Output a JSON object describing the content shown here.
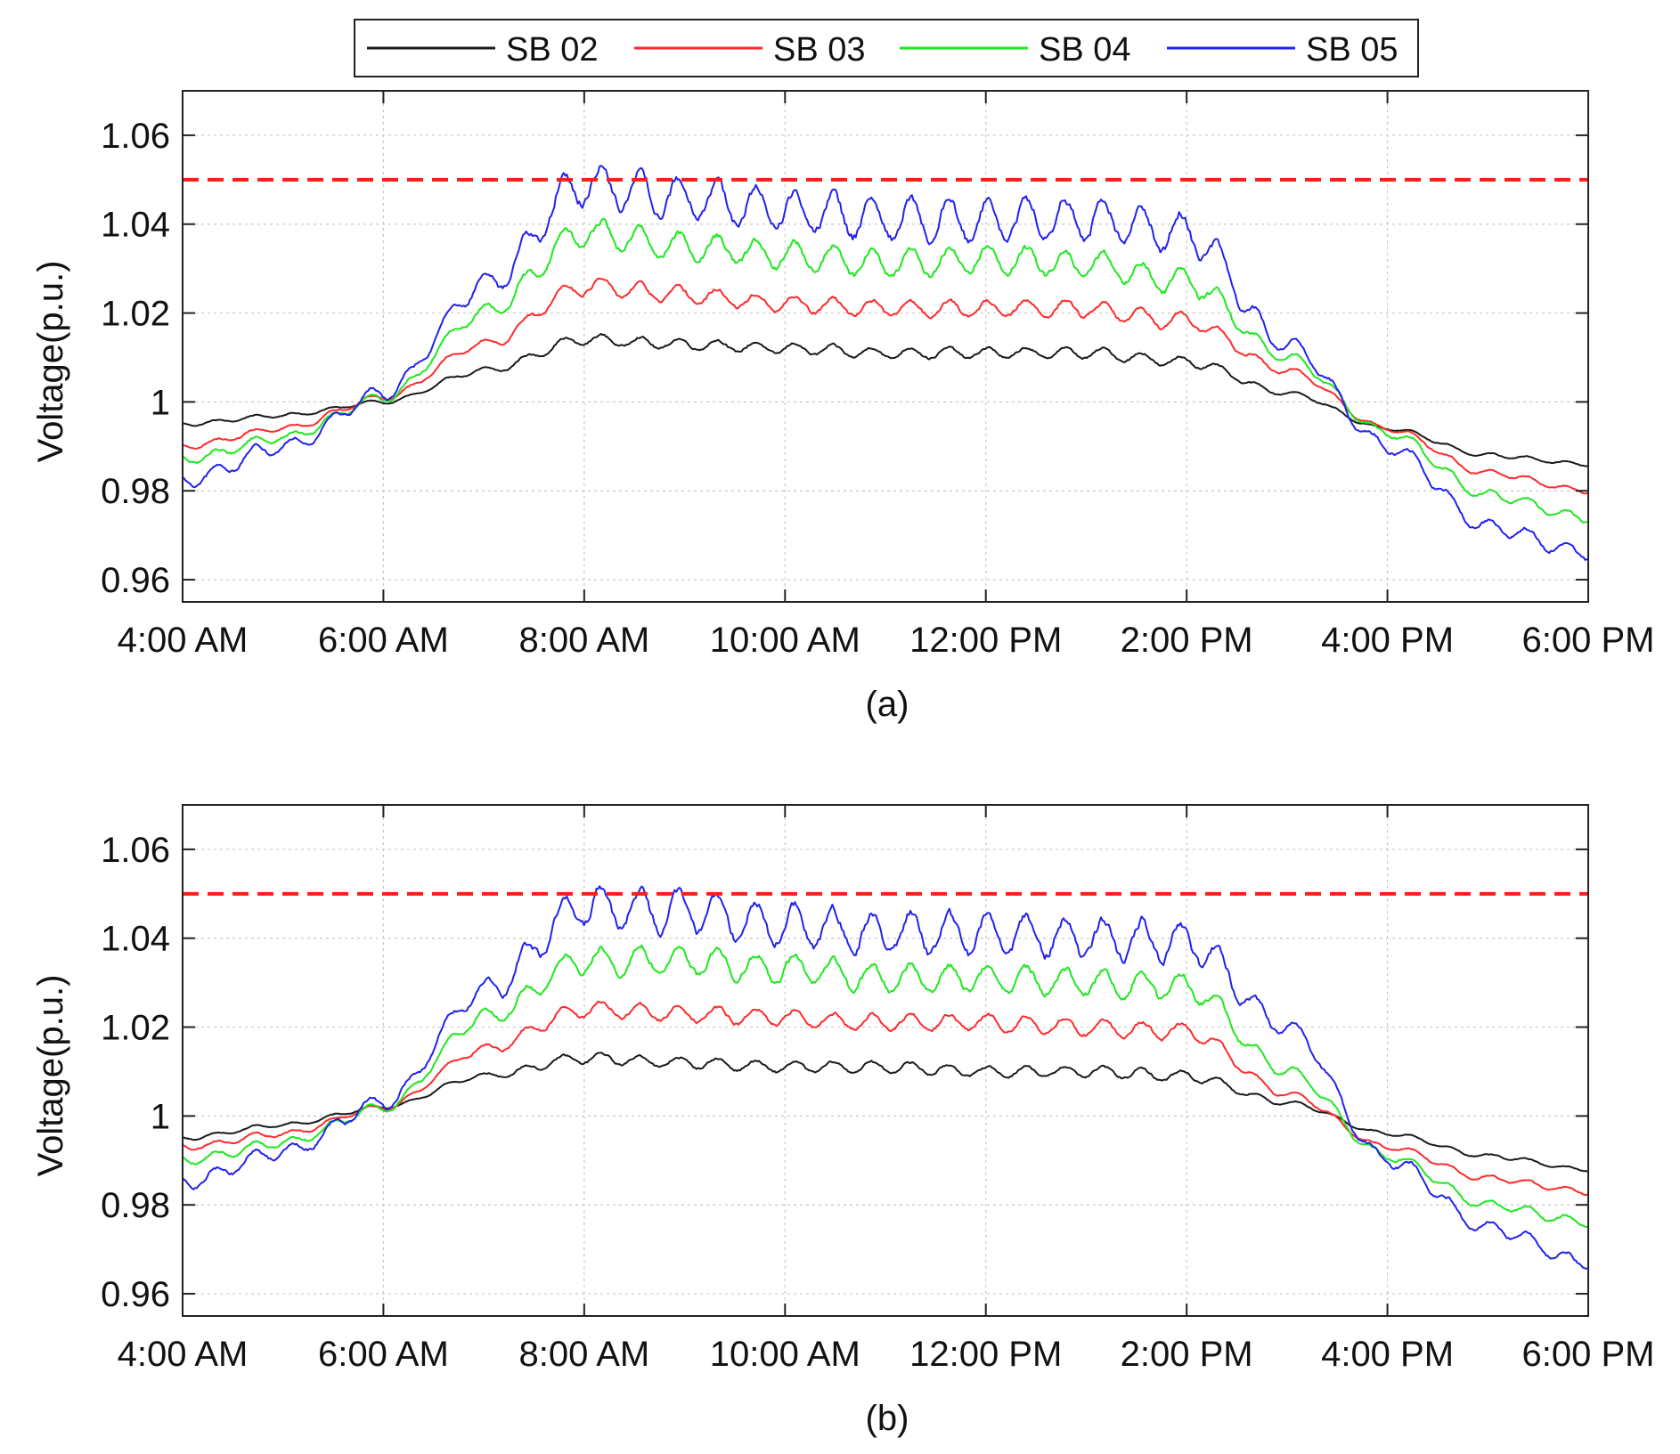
{
  "legend": [
    {
      "name": "SB 02",
      "color": "#1a1a1a"
    },
    {
      "name": "SB 03",
      "color": "#ff2a2a"
    },
    {
      "name": "SB 04",
      "color": "#1ee81e"
    },
    {
      "name": "SB 05",
      "color": "#2222ee"
    }
  ],
  "limit": {
    "value": 1.05,
    "color": "#ff1a1a",
    "style": "dashed"
  },
  "chart_data": [
    {
      "type": "line",
      "caption": "(a)",
      "ylabel": "Voltage(p.u.)",
      "xlabel": "",
      "x_hours": [
        4,
        5,
        6,
        7,
        8,
        9,
        10,
        11,
        12,
        13,
        14,
        15,
        16,
        17,
        18
      ],
      "xticks": [
        "4:00 AM",
        "6:00 AM",
        "8:00 AM",
        "10:00 AM",
        "12:00 PM",
        "2:00 PM",
        "4:00 PM",
        "6:00 PM"
      ],
      "yticks": [
        "0.96",
        "0.98",
        "1",
        "1.02",
        "1.04",
        "1.06"
      ],
      "ylim": [
        0.955,
        1.07
      ],
      "xlim_hours": [
        4,
        18
      ],
      "grid": true,
      "series": [
        {
          "name": "SB 02",
          "values": [
            0.995,
            0.997,
            1.0,
            1.007,
            1.014,
            1.013,
            1.012,
            1.011,
            1.011,
            1.011,
            1.009,
            1.002,
            0.994,
            0.988,
            0.986
          ],
          "ripple": 0.0012
        },
        {
          "name": "SB 03",
          "values": [
            0.99,
            0.994,
            1.001,
            1.013,
            1.026,
            1.024,
            1.022,
            1.021,
            1.021,
            1.021,
            1.018,
            1.007,
            0.994,
            0.984,
            0.98
          ],
          "ripple": 0.0018
        },
        {
          "name": "SB 04",
          "values": [
            0.987,
            0.992,
            1.001,
            1.02,
            1.038,
            1.035,
            1.033,
            1.031,
            1.032,
            1.031,
            1.027,
            1.01,
            0.993,
            0.979,
            0.974
          ],
          "ripple": 0.003
        },
        {
          "name": "SB 05",
          "values": [
            0.982,
            0.99,
            1.002,
            1.026,
            1.049,
            1.046,
            1.043,
            1.041,
            1.041,
            1.041,
            1.038,
            1.013,
            0.99,
            0.972,
            0.966
          ],
          "ripple": 0.0045
        }
      ]
    },
    {
      "type": "line",
      "caption": "(b)",
      "ylabel": "Voltage(p.u.)",
      "xlabel": "",
      "x_hours": [
        4,
        5,
        6,
        7,
        8,
        9,
        10,
        11,
        12,
        13,
        14,
        15,
        16,
        17,
        18
      ],
      "xticks": [
        "4:00 AM",
        "6:00 AM",
        "8:00 AM",
        "10:00 AM",
        "12:00 PM",
        "2:00 PM",
        "4:00 PM",
        "6:00 PM"
      ],
      "yticks": [
        "0.96",
        "0.98",
        "1",
        "1.02",
        "1.04",
        "1.06"
      ],
      "ylim": [
        0.955,
        1.07
      ],
      "xlim_hours": [
        4,
        18
      ],
      "grid": true,
      "series": [
        {
          "name": "SB 02",
          "values": [
            0.995,
            0.998,
            1.002,
            1.009,
            1.013,
            1.012,
            1.011,
            1.011,
            1.01,
            1.01,
            1.009,
            1.003,
            0.996,
            0.991,
            0.988
          ],
          "ripple": 0.0012
        },
        {
          "name": "SB 03",
          "values": [
            0.993,
            0.996,
            1.002,
            1.015,
            1.024,
            1.023,
            1.022,
            1.021,
            1.021,
            1.02,
            1.019,
            1.005,
            0.993,
            0.986,
            0.983
          ],
          "ripple": 0.0018
        },
        {
          "name": "SB 04",
          "values": [
            0.99,
            0.994,
            1.002,
            1.022,
            1.035,
            1.035,
            1.033,
            1.031,
            1.031,
            1.03,
            1.029,
            1.01,
            0.991,
            0.98,
            0.976
          ],
          "ripple": 0.003
        },
        {
          "name": "SB 05",
          "values": [
            0.985,
            0.992,
            1.003,
            1.028,
            1.047,
            1.046,
            1.043,
            1.041,
            1.041,
            1.04,
            1.039,
            1.02,
            0.99,
            0.975,
            0.967
          ],
          "ripple": 0.0045
        }
      ]
    }
  ]
}
